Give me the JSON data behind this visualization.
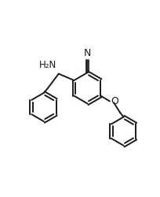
{
  "bg_color": "#ffffff",
  "line_color": "#1a1a1a",
  "line_width": 1.4,
  "font_size": 8.5,
  "xlim": [
    -2.6,
    2.8
  ],
  "ylim": [
    -3.0,
    3.0
  ]
}
